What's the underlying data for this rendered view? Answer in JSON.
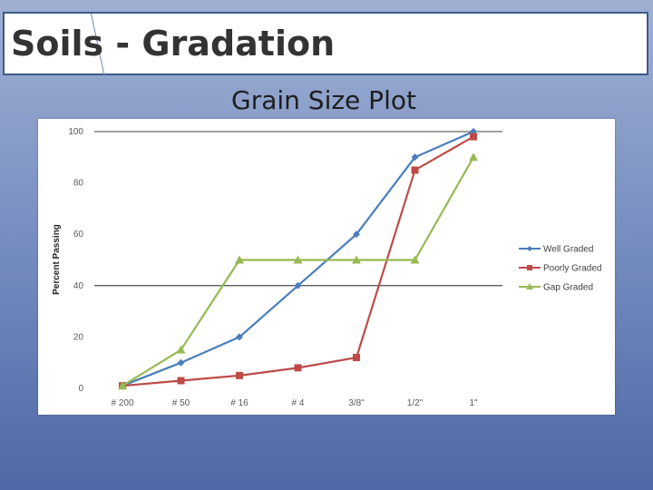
{
  "slide": {
    "title": "Soils - Gradation",
    "subtitle": "Grain Size Plot"
  },
  "chart_data": {
    "type": "line",
    "title": "Grain Size Plot",
    "xlabel": "",
    "ylabel": "Percent Passing",
    "ylim": [
      0,
      100
    ],
    "yticks": [
      0,
      20,
      40,
      60,
      80,
      100
    ],
    "gridlines_at": [
      40,
      100
    ],
    "categories": [
      "# 200",
      "# 50",
      "# 16",
      "# 4",
      "3/8\"",
      "1/2\"",
      "1\""
    ],
    "legend_position": "right",
    "series": [
      {
        "name": "Well Graded",
        "values": [
          1,
          10,
          20,
          40,
          60,
          90,
          100
        ],
        "color": "#4a7ebb",
        "marker": "diamond"
      },
      {
        "name": "Poorly Graded",
        "values": [
          1,
          3,
          5,
          8,
          12,
          85,
          98
        ],
        "color": "#be4b48",
        "marker": "square"
      },
      {
        "name": "Gap Graded",
        "values": [
          1,
          15,
          50,
          50,
          50,
          50,
          90
        ],
        "color": "#98b954",
        "marker": "triangle"
      }
    ]
  }
}
